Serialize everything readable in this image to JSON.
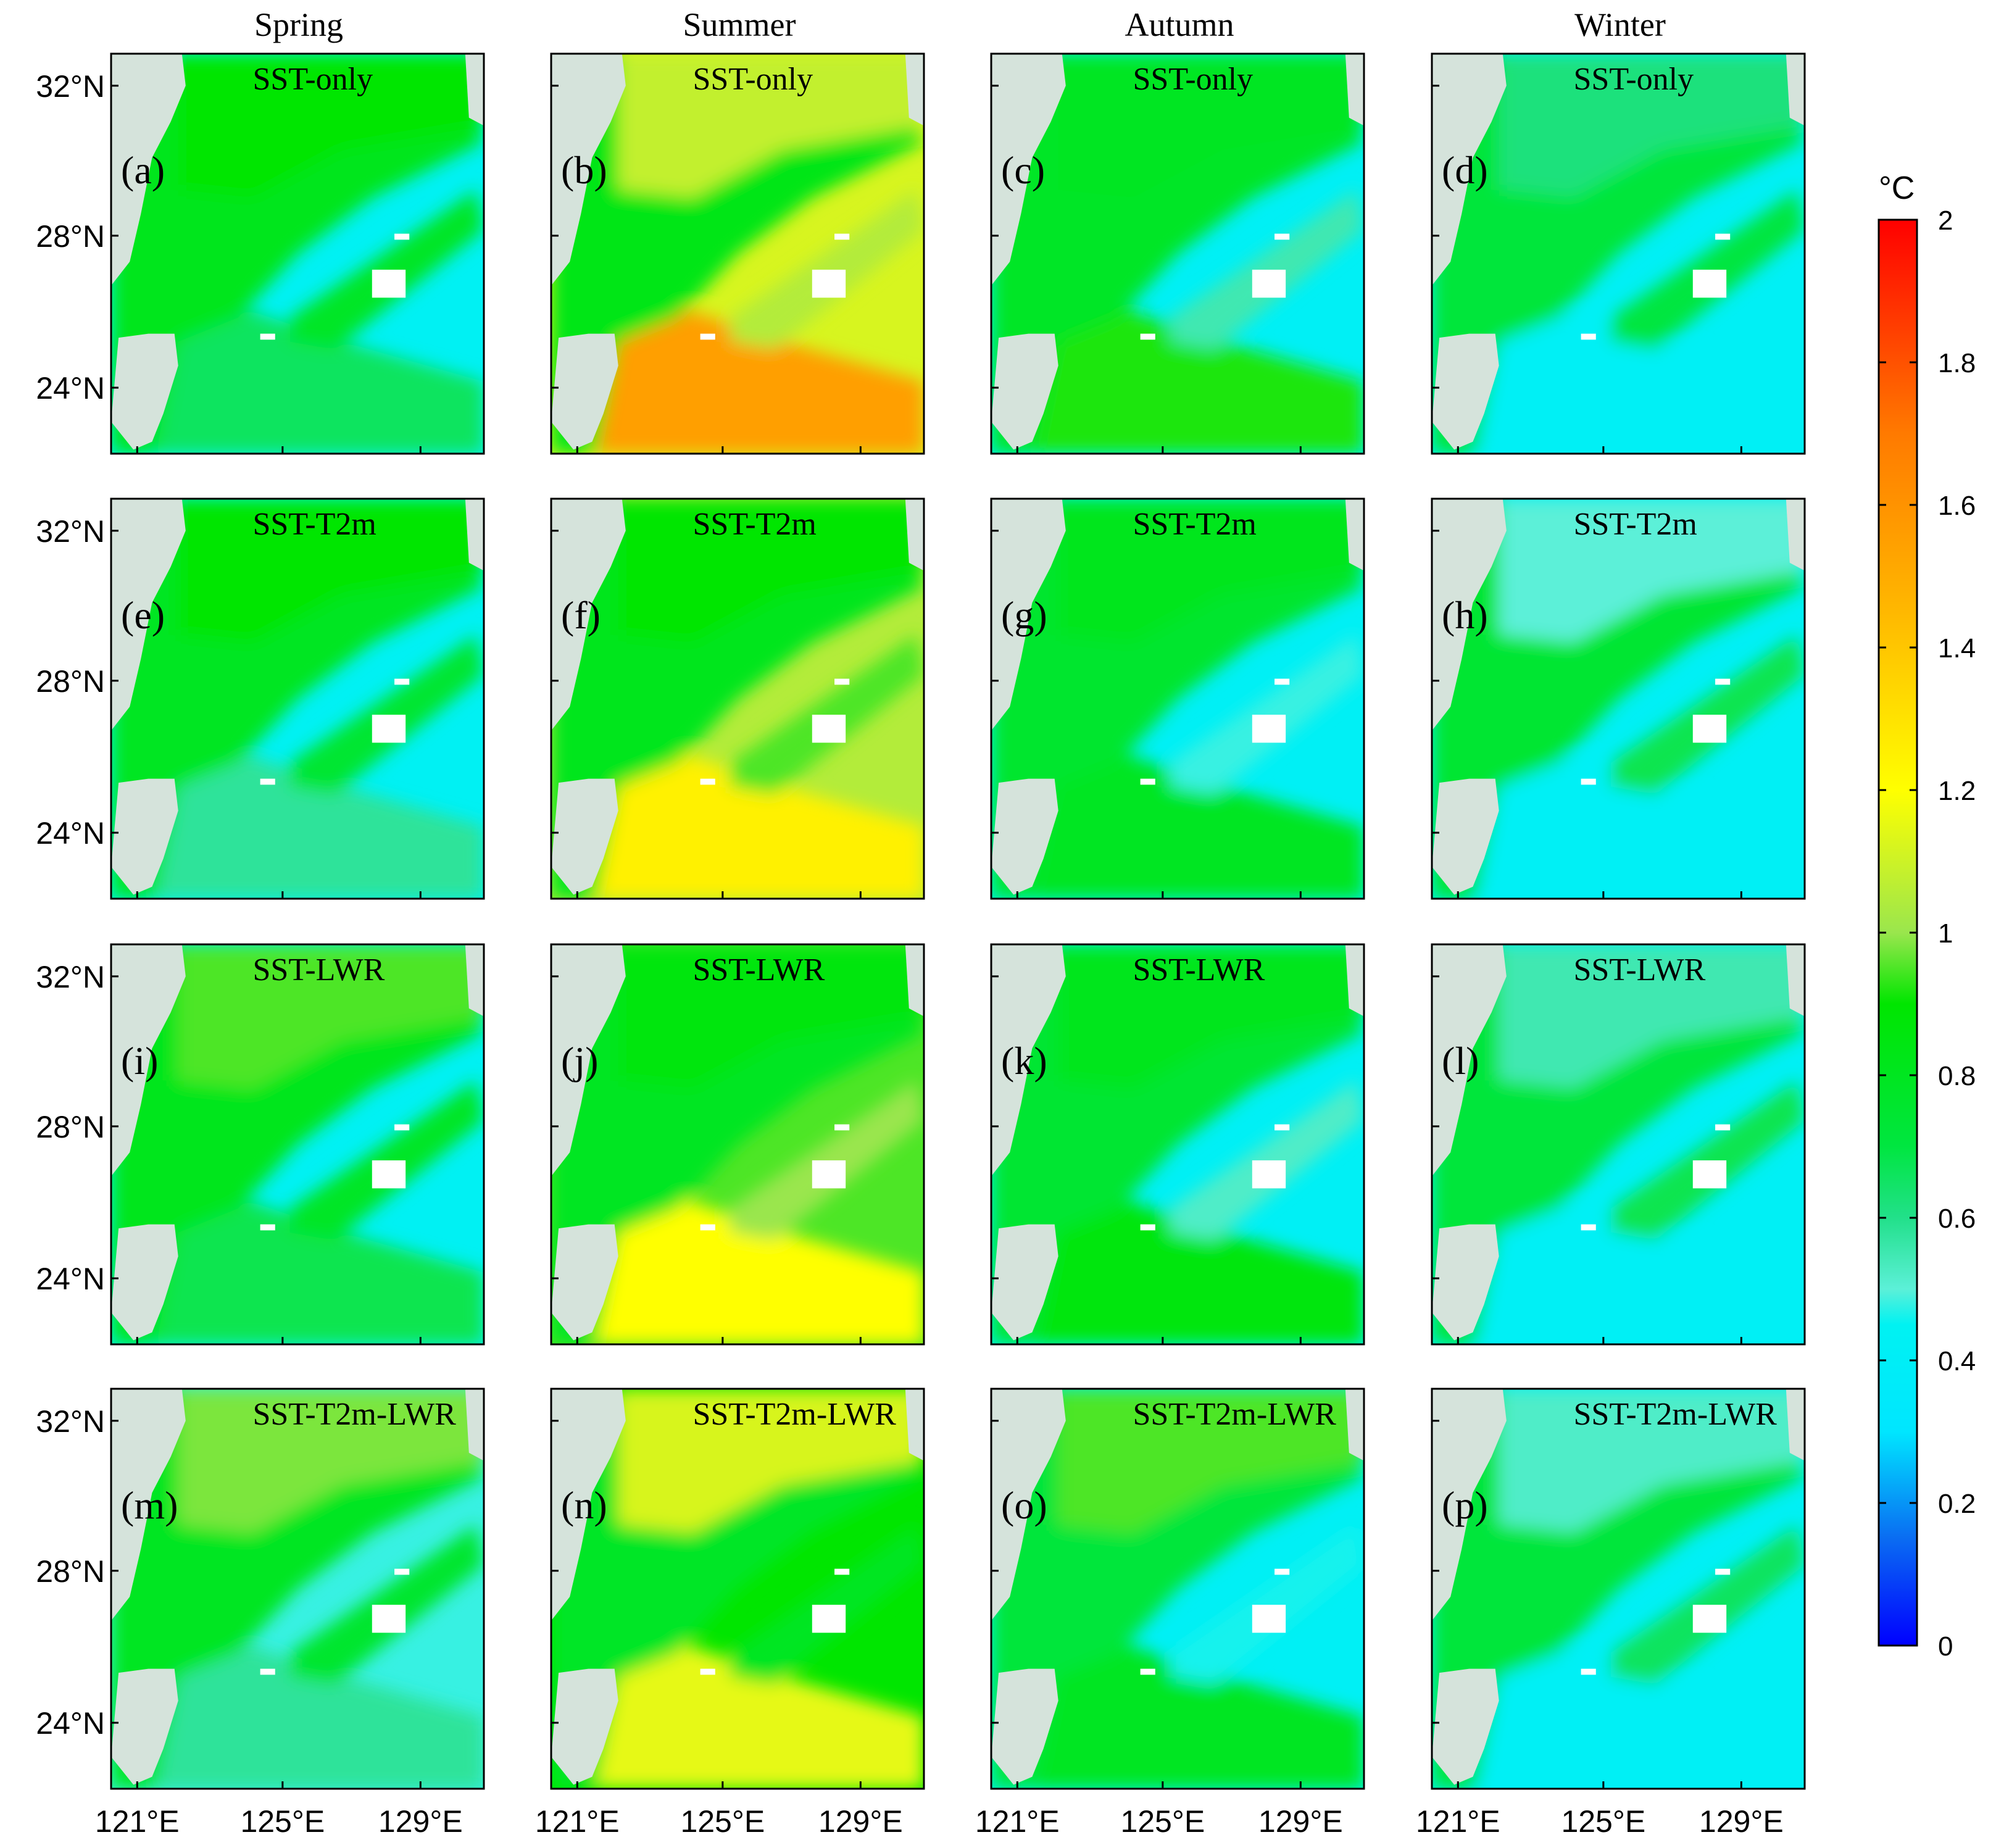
{
  "chart_data": {
    "type": "heatmap",
    "description_units": "°C",
    "season_titles": [
      "Spring",
      "Summer",
      "Autumn",
      "Winter"
    ],
    "experiments": [
      "SST-only",
      "SST-T2m",
      "SST-LWR",
      "SST-T2m-LWR"
    ],
    "panel_letters": [
      "(a)",
      "(b)",
      "(c)",
      "(d)",
      "(e)",
      "(f)",
      "(g)",
      "(h)",
      "(i)",
      "(j)",
      "(k)",
      "(l)",
      "(m)",
      "(n)",
      "(o)",
      "(p)"
    ],
    "x_ticks": [
      "121°E",
      "125°E",
      "129°E"
    ],
    "y_ticks": [
      "32°N",
      "28°N",
      "24°N"
    ],
    "xlim": [
      119.8,
      130.6
    ],
    "ylim": [
      21.9,
      33.2
    ],
    "colorbar": {
      "unit_label": "°C",
      "range": [
        0,
        2
      ],
      "ticks": [
        "0",
        "0.2",
        "0.4",
        "0.6",
        "0.8",
        "1",
        "1.2",
        "1.4",
        "1.6",
        "1.8",
        "2"
      ],
      "stops": [
        {
          "v": 0.0,
          "color": "#0000ff"
        },
        {
          "v": 0.15,
          "color": "#0a6cf2"
        },
        {
          "v": 0.3,
          "color": "#00e6ff"
        },
        {
          "v": 0.45,
          "color": "#00f2f2"
        },
        {
          "v": 0.5,
          "color": "#5cf0d8"
        },
        {
          "v": 0.6,
          "color": "#22e08a"
        },
        {
          "v": 0.7,
          "color": "#00e640"
        },
        {
          "v": 0.9,
          "color": "#00e600"
        },
        {
          "v": 1.0,
          "color": "#9ae64d"
        },
        {
          "v": 1.2,
          "color": "#ffff00"
        },
        {
          "v": 1.45,
          "color": "#ffb800"
        },
        {
          "v": 1.7,
          "color": "#ff7a00"
        },
        {
          "v": 2.0,
          "color": "#ff0000"
        }
      ]
    },
    "land_color": "#d5e3db",
    "panel_values_C": [
      [
        {
          "shelf": 0.82,
          "north": 0.9,
          "open": 0.44,
          "band": 0.78,
          "south": 0.66
        },
        {
          "shelf": 0.84,
          "north": 1.08,
          "open": 1.12,
          "band": 1.05,
          "south": 1.55
        },
        {
          "shelf": 0.78,
          "north": 0.8,
          "open": 0.42,
          "band": 0.55,
          "south": 0.92
        },
        {
          "shelf": 0.72,
          "north": 0.62,
          "open": 0.42,
          "band": 0.7,
          "south": 0.42
        }
      ],
      [
        {
          "shelf": 0.8,
          "north": 0.88,
          "open": 0.44,
          "band": 0.74,
          "south": 0.58
        },
        {
          "shelf": 0.82,
          "north": 0.9,
          "open": 1.05,
          "band": 0.95,
          "south": 1.25
        },
        {
          "shelf": 0.76,
          "north": 0.82,
          "open": 0.42,
          "band": 0.48,
          "south": 0.8
        },
        {
          "shelf": 0.74,
          "north": 0.5,
          "open": 0.42,
          "band": 0.68,
          "south": 0.42
        }
      ],
      [
        {
          "shelf": 0.82,
          "north": 0.95,
          "open": 0.44,
          "band": 0.78,
          "south": 0.68
        },
        {
          "shelf": 0.8,
          "north": 0.86,
          "open": 0.95,
          "band": 1.0,
          "south": 1.2
        },
        {
          "shelf": 0.74,
          "north": 0.82,
          "open": 0.42,
          "band": 0.52,
          "south": 0.86
        },
        {
          "shelf": 0.72,
          "north": 0.55,
          "open": 0.42,
          "band": 0.68,
          "south": 0.42
        }
      ],
      [
        {
          "shelf": 0.8,
          "north": 0.98,
          "open": 0.48,
          "band": 0.76,
          "south": 0.58
        },
        {
          "shelf": 0.78,
          "north": 1.12,
          "open": 0.9,
          "band": 0.8,
          "south": 1.15
        },
        {
          "shelf": 0.72,
          "north": 0.95,
          "open": 0.42,
          "band": 0.46,
          "south": 0.8
        },
        {
          "shelf": 0.72,
          "north": 0.52,
          "open": 0.42,
          "band": 0.66,
          "south": 0.42
        }
      ]
    ]
  }
}
